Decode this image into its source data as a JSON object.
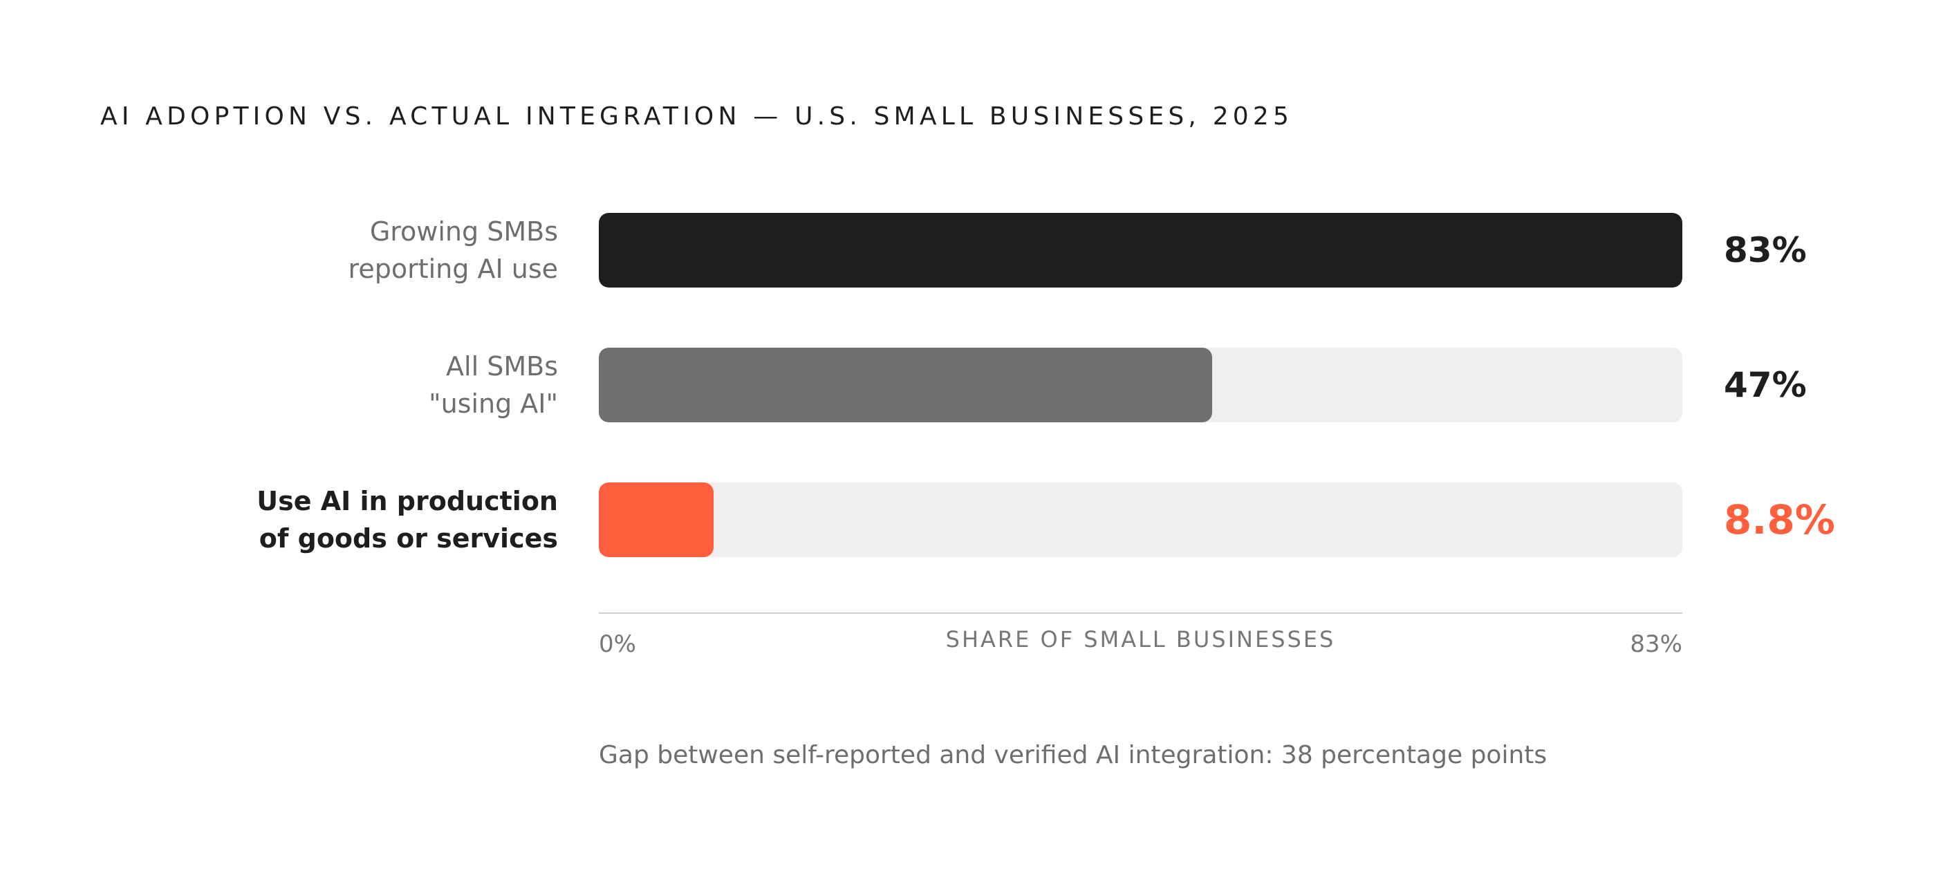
{
  "chart_data": {
    "type": "bar",
    "orientation": "horizontal",
    "title": "AI ADOPTION VS. ACTUAL INTEGRATION — U.S. SMALL BUSINESSES, 2025",
    "categories": [
      "Growing SMBs\nreporting AI use",
      "All SMBs\n\"using AI\"",
      "Use AI in production\nof goods or services"
    ],
    "values": [
      83,
      47,
      8.8
    ],
    "value_labels": [
      "83%",
      "47%",
      "8.8%"
    ],
    "colors": [
      "#1c1f1d",
      "#6e6f6e",
      "#ff5f3d"
    ],
    "emphasized": [
      false,
      false,
      true
    ],
    "xlabel": "SHARE OF SMALL BUSINESSES",
    "ylabel": "",
    "xlim": [
      0,
      83
    ],
    "x_tick_labels": [
      "0%",
      "83%"
    ],
    "grid": false,
    "annotation": "Gap between self-reported and verified AI integration: 38 percentage points",
    "track_color": "#efefed",
    "emphasis_color": "#ff5f3d"
  }
}
